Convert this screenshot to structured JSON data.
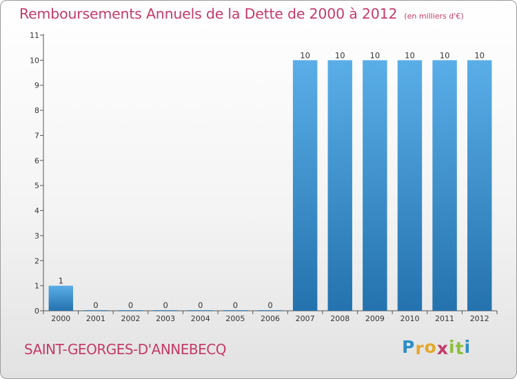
{
  "chart_data": {
    "type": "bar",
    "title": "Remboursements Annuels de la Dette de 2000 à 2012",
    "unit": "(en milliers d'€)",
    "categories": [
      "2000",
      "2001",
      "2002",
      "2003",
      "2004",
      "2005",
      "2006",
      "2007",
      "2008",
      "2009",
      "2010",
      "2011",
      "2012"
    ],
    "values": [
      1,
      0,
      0,
      0,
      0,
      0,
      0,
      10,
      10,
      10,
      10,
      10,
      10
    ],
    "yticks": [
      "0",
      "1",
      "2",
      "3",
      "4",
      "5",
      "6",
      "7",
      "8",
      "9",
      "10",
      "11"
    ],
    "ylim": [
      0,
      11
    ],
    "grid": false,
    "legend": "none",
    "colors": {
      "bar_top": "#5aaee8",
      "bar_bottom": "#2472ae",
      "title": "#c43a6a"
    }
  },
  "commune": "SAINT-GEORGES-D'ANNEBECQ",
  "logo": {
    "letters": [
      "P",
      "r",
      "o",
      "x",
      "i",
      "t",
      "i"
    ],
    "colors": [
      "#2c8ec8",
      "#e4a82a",
      "#e4a82a",
      "#c43a6a",
      "#8cbf3a",
      "#8cbf3a",
      "#2c8ec8"
    ]
  }
}
